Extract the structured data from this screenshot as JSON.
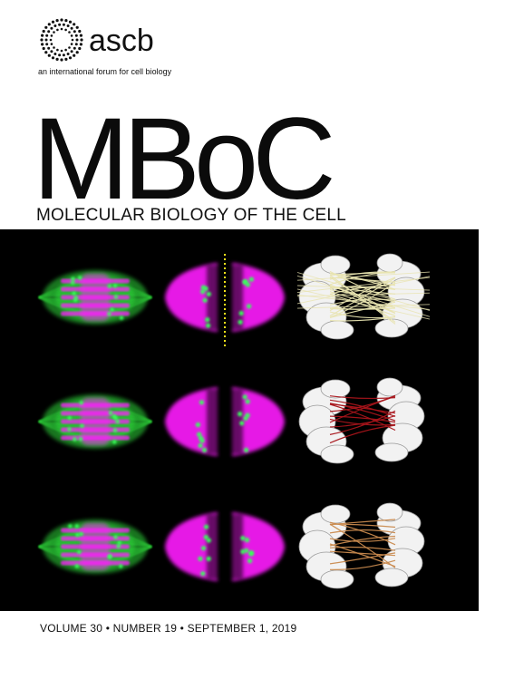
{
  "brand": {
    "logo_icon": "dotted-sphere-icon",
    "wordmark": "ascb",
    "tagline": "an international forum for cell biology"
  },
  "journal": {
    "title": "MBoC",
    "subtitle": "MOLECULAR BIOLOGY OF THE CELL"
  },
  "issue": {
    "line": "VOLUME 30 • NUMBER 19 • SEPTEMBER 1, 2019"
  },
  "artwork": {
    "description_icon": "spindle-microscopy-panels",
    "rows": 3,
    "colors": {
      "background": "#000000",
      "microtubules": "#2fd63a",
      "chromatin": "#ff1cff",
      "kinetochores": "#38ff5a",
      "axis": "#f5e21a",
      "bundles_row1": "#e8e4b0",
      "bundles_row2": "#a8141a",
      "bundles_row3": "#c98a4e",
      "models": "#f2f2f2"
    }
  }
}
